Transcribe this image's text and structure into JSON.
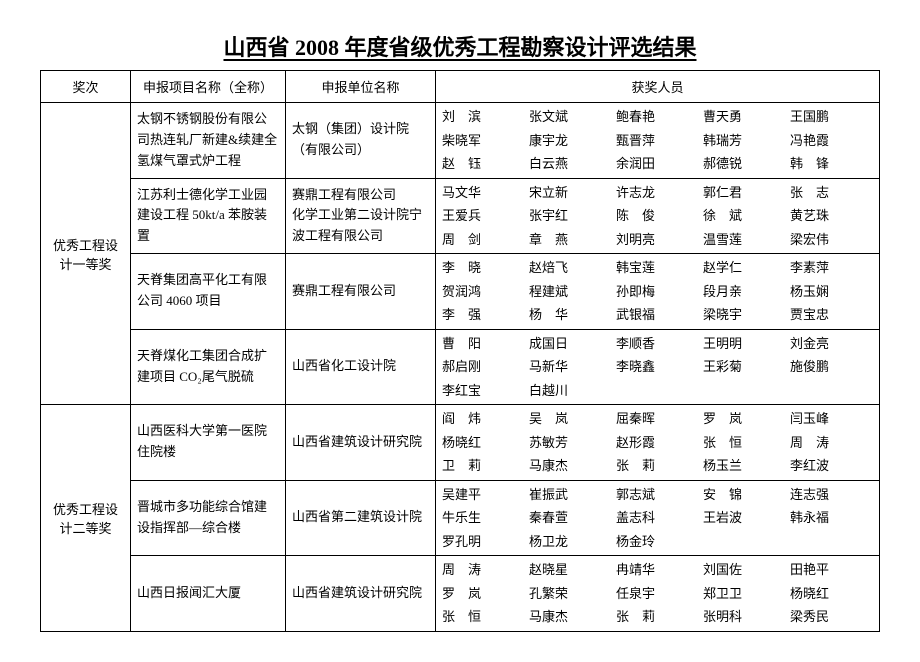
{
  "title": "山西省 2008 年度省级优秀工程勘察设计评选结果",
  "columns": [
    "奖次",
    "申报项目名称（全称）",
    "申报单位名称",
    "获奖人员"
  ],
  "groups": [
    {
      "award": "优秀工程设计一等奖",
      "rows": [
        {
          "project": "太钢不锈钢股份有限公司热连轧厂新建&续建全氢煤气罩式炉工程",
          "org": "太钢（集团）设计院（有限公司）",
          "people": [
            "刘　滨",
            "张文斌",
            "鲍春艳",
            "曹天勇",
            "王国鹏",
            "柴晓军",
            "康宇龙",
            "甄晋萍",
            "韩瑞芳",
            "冯艳霞",
            "赵　钰",
            "白云燕",
            "余润田",
            "郝德锐",
            "韩　锋"
          ]
        },
        {
          "project": "江苏利士德化学工业园建设工程 50kt/a 苯胺装置",
          "org": "赛鼎工程有限公司\n化学工业第二设计院宁波工程有限公司",
          "people": [
            "马文华",
            "宋立新",
            "许志龙",
            "郭仁君",
            "张　志",
            "王爱兵",
            "张宇红",
            "陈　俊",
            "徐　斌",
            "黄艺珠",
            "周　剑",
            "章　燕",
            "刘明亮",
            "温雪莲",
            "梁宏伟"
          ]
        },
        {
          "project": "天脊集团高平化工有限公司 4060 项目",
          "org": "赛鼎工程有限公司",
          "people": [
            "李　晓",
            "赵焙飞",
            "韩宝莲",
            "赵学仁",
            "李素萍",
            "贺润鸿",
            "程建斌",
            "孙即梅",
            "段月亲",
            "杨玉娴",
            "李　强",
            "杨　华",
            "武银福",
            "梁晓宇",
            "贾宝忠"
          ]
        },
        {
          "project": "天脊煤化工集团合成扩建项目 CO₂尾气脱硫",
          "org": "山西省化工设计院",
          "people": [
            "曹　阳",
            "成国日",
            "李顺香",
            "王明明",
            "刘金亮",
            "郝启刚",
            "马新华",
            "李晓鑫",
            "王彩菊",
            "施俊鹏",
            "李红宝",
            "白越川"
          ]
        }
      ]
    },
    {
      "award": "优秀工程设计二等奖",
      "rows": [
        {
          "project": "山西医科大学第一医院住院楼",
          "org": "山西省建筑设计研究院",
          "people": [
            "阎　炜",
            "吴　岚",
            "屈秦晖",
            "罗　岚",
            "闫玉峰",
            "杨晓红",
            "苏敏芳",
            "赵形霞",
            "张　恒",
            "周　涛",
            "卫　莉",
            "马康杰",
            "张　莉",
            "杨玉兰",
            "李红波"
          ]
        },
        {
          "project": "晋城市多功能综合馆建设指挥部—综合楼",
          "org": "山西省第二建筑设计院",
          "people": [
            "吴建平",
            "崔振武",
            "郭志斌",
            "安　锦",
            "连志强",
            "牛乐生",
            "秦春萱",
            "盖志科",
            "王岩波",
            "韩永福",
            "罗孔明",
            "杨卫龙",
            "杨金玲"
          ]
        },
        {
          "project": "山西日报闻汇大厦",
          "org": "山西省建筑设计研究院",
          "people": [
            "周　涛",
            "赵晓星",
            "冉靖华",
            "刘国佐",
            "田艳平",
            "罗　岚",
            "孔繁荣",
            "任泉宇",
            "郑卫卫",
            "杨晓红",
            "张　恒",
            "马康杰",
            "张　莉",
            "张明科",
            "梁秀民"
          ]
        }
      ]
    }
  ]
}
